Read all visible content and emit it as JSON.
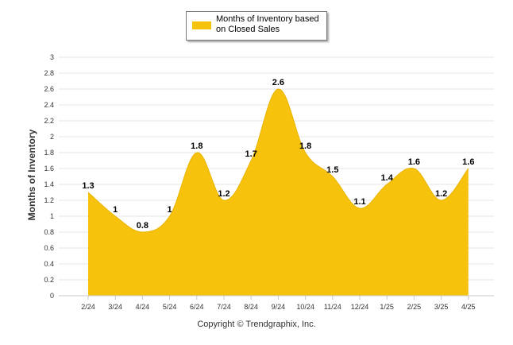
{
  "chart_data": {
    "type": "area",
    "categories": [
      "2/24",
      "3/24",
      "4/24",
      "5/24",
      "6/24",
      "7/24",
      "8/24",
      "9/24",
      "10/24",
      "11/24",
      "12/24",
      "1/25",
      "2/25",
      "3/25",
      "4/25"
    ],
    "series": [
      {
        "name": "Months of Inventory based on Closed Sales",
        "values": [
          1.3,
          1,
          0.8,
          1,
          1.8,
          1.2,
          1.7,
          2.6,
          1.8,
          1.5,
          1.1,
          1.4,
          1.6,
          1.2,
          1.6
        ],
        "labels": [
          "1.3",
          "1",
          "0.8",
          "1",
          "1.8",
          "1.2",
          "1.7",
          "2.6",
          "1.8",
          "1.5",
          "1.1",
          "1.4",
          "1.6",
          "1.2",
          "1.6"
        ],
        "color": "#f7c20b"
      }
    ],
    "ylabel": "Months of Inventory",
    "ylim": [
      0,
      3
    ],
    "yticks": [
      "0",
      "0.2",
      "0.4",
      "0.6",
      "0.8",
      "1",
      "1.2",
      "1.4",
      "1.6",
      "1.8",
      "2",
      "2.2",
      "2.4",
      "2.6",
      "2.8",
      "3"
    ],
    "grid": true,
    "legend_position": "top-center"
  },
  "legend": {
    "label": "Months of Inventory based on Closed Sales"
  },
  "footer": {
    "copyright": "Copyright © Trendgraphix, Inc."
  },
  "colors": {
    "area": "#f7c20b",
    "grid": "#e6e6e6",
    "axis": "#c8c8c8",
    "text": "#333333"
  }
}
